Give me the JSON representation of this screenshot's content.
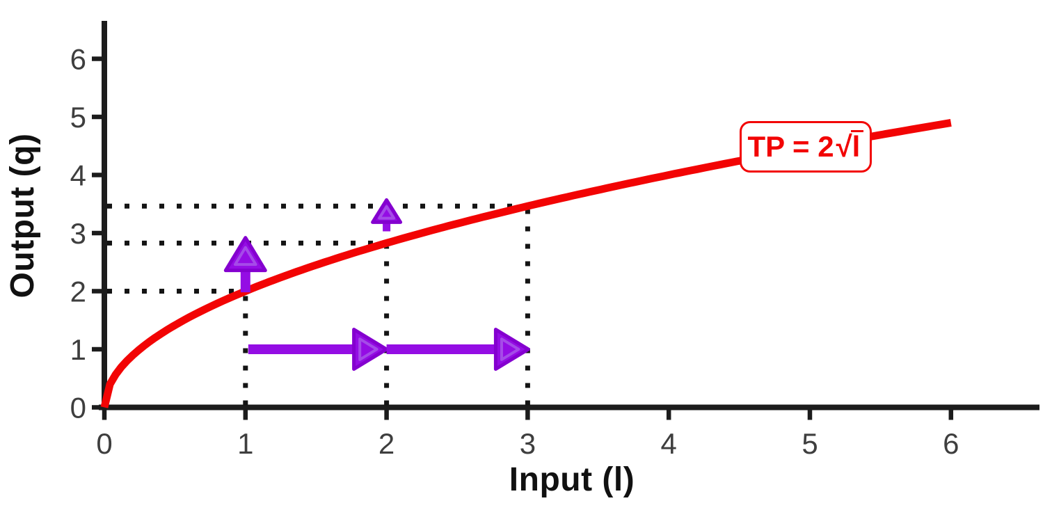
{
  "chart_data": {
    "type": "line",
    "title": "",
    "xlabel": "Input (l)",
    "ylabel": "Output (q)",
    "x_ticks": [
      0,
      1,
      2,
      3,
      4,
      5,
      6
    ],
    "y_ticks": [
      0,
      1,
      2,
      3,
      4,
      5,
      6
    ],
    "xlim": [
      0,
      6.65
    ],
    "ylim": [
      0,
      6.65
    ],
    "grid": false,
    "legend": "none",
    "series": [
      {
        "name": "total-product-curve",
        "label": "TP = 2√l",
        "formula": "TP = 2*sqrt(l)",
        "curve": {
          "fn": "sqrt",
          "scale": 2,
          "domain": [
            0,
            6
          ]
        },
        "color": "#f20404",
        "points": [
          [
            0,
            0
          ],
          [
            1,
            2
          ],
          [
            2,
            2.83
          ],
          [
            3,
            3.46
          ],
          [
            4,
            4
          ],
          [
            5,
            4.47
          ],
          [
            6,
            4.9
          ]
        ]
      }
    ],
    "curve_label": {
      "text": "TP = 2√l",
      "prefix": "TP = 2",
      "radical": "√",
      "radicand": "l",
      "color": "#f20404",
      "anchor": {
        "l": 4.97,
        "q": 4.49
      }
    },
    "key_points": [
      {
        "l": 1,
        "q": 2
      },
      {
        "l": 2,
        "q": 2.828
      },
      {
        "l": 3,
        "q": 3.464
      }
    ],
    "guides": {
      "color": "#141414",
      "pattern": "dotted"
    },
    "arrows": {
      "fill": "#940de4",
      "outline": "#8400cf",
      "ghost": "#a54be8",
      "items": [
        {
          "name": "input-step-1-to-2",
          "dir": "right",
          "q": 1,
          "from": 1.02,
          "to": 2.0,
          "size": "large"
        },
        {
          "name": "input-step-2-to-3",
          "dir": "right",
          "q": 1,
          "from": 2.0,
          "to": 3.005,
          "size": "large"
        },
        {
          "name": "output-gain-at-1",
          "dir": "up",
          "l": 1,
          "from": 1.98,
          "to": 2.92,
          "size": "large"
        },
        {
          "name": "output-gain-at-2",
          "dir": "up",
          "l": 2,
          "from": 3.03,
          "to": 3.57,
          "size": "small"
        }
      ]
    },
    "axis": {
      "color": "#1c1c1c",
      "tick_label_color": "#3e3e3e",
      "label_color": "#111111"
    }
  }
}
